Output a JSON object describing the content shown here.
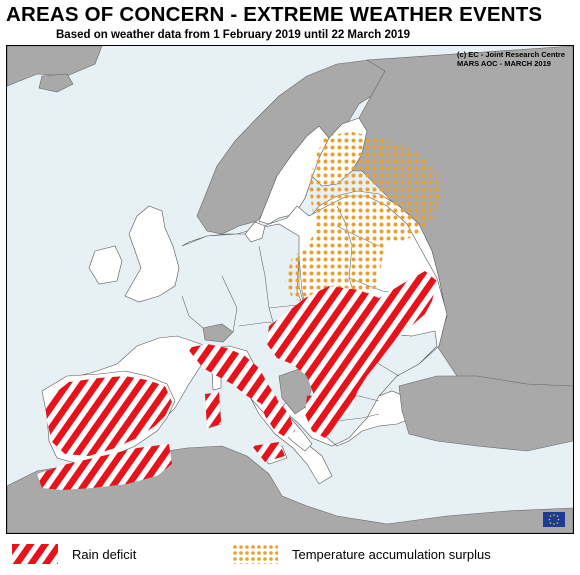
{
  "title": "AREAS OF CONCERN - EXTREME WEATHER EVENTS",
  "subtitle": "Based on weather data from 1 February 2019 until 22 March 2019",
  "credit": {
    "line1": "(c) EC - Joint Research Centre",
    "line2": "MARS AOC - MARCH 2019"
  },
  "legend": [
    {
      "label": "Rain deficit",
      "pattern": "red-white-stripes"
    },
    {
      "label": "Temperature accumulation surplus",
      "pattern": "orange-dots"
    }
  ],
  "colors": {
    "sea": "#e7f1f5",
    "land_focus": "#ffffff",
    "land_other": "#a9a9a9",
    "border": "#555555",
    "rain_deficit": "#e8121b",
    "temperature_surplus": "#e8a030"
  },
  "icons": {
    "eu_flag": "eu-flag-icon"
  }
}
